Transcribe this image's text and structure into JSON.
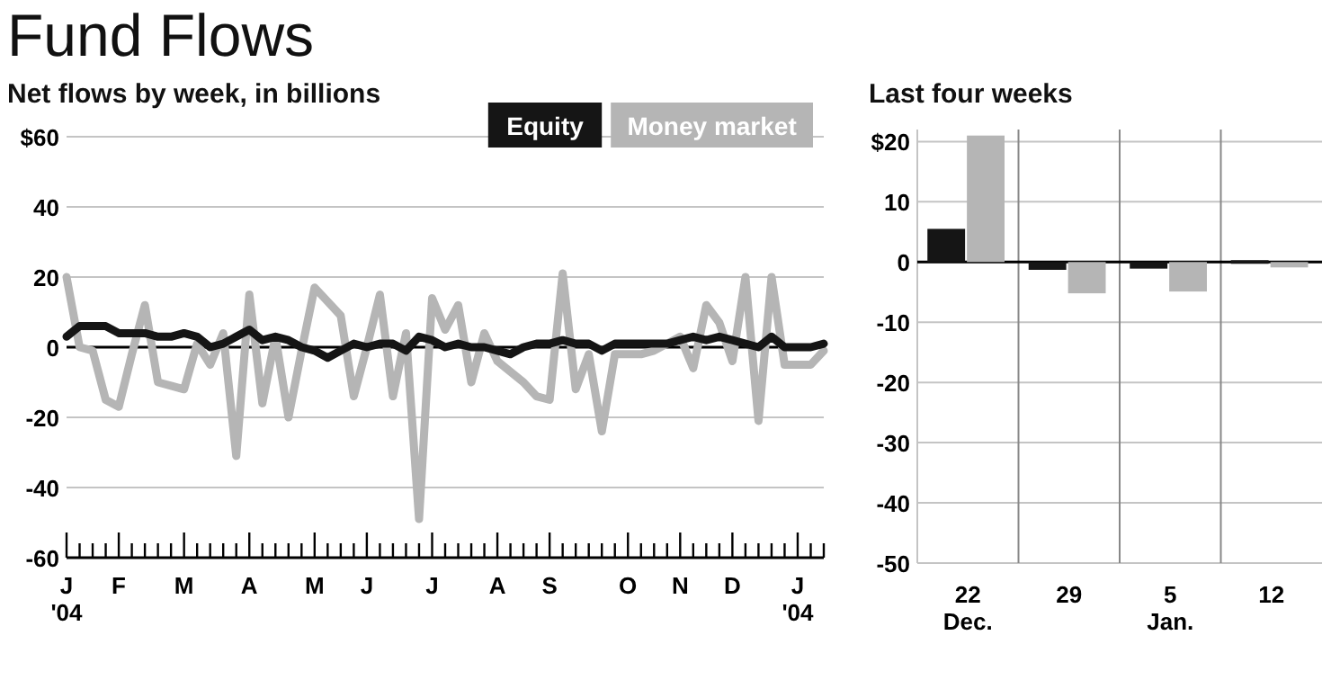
{
  "chart_data": [
    {
      "type": "line",
      "title": "Fund Flows",
      "subtitle": "Net flows by week, in billions",
      "ylim": [
        -60,
        60
      ],
      "yticks": [
        {
          "value": 60,
          "label": "$60"
        },
        40,
        20,
        0,
        -20,
        -40,
        -60
      ],
      "categories": [
        "J\n'04",
        null,
        null,
        null,
        "F",
        null,
        null,
        null,
        null,
        "M",
        null,
        null,
        null,
        null,
        "A",
        null,
        null,
        null,
        null,
        "M",
        null,
        null,
        null,
        "J",
        null,
        null,
        null,
        null,
        "J",
        null,
        null,
        null,
        null,
        "A",
        null,
        null,
        null,
        "S",
        null,
        null,
        null,
        null,
        null,
        "O",
        null,
        null,
        null,
        "N",
        null,
        null,
        null,
        "D",
        null,
        null,
        null,
        null,
        "J\n'04",
        null,
        null
      ],
      "grid": "y",
      "legend": "top right",
      "ref_lines": [
        {
          "axis": "y",
          "value": 0,
          "color": "#000000"
        }
      ],
      "series": [
        {
          "name": "Equity",
          "color": "#151515",
          "values": [
            3,
            6,
            6,
            6,
            4,
            4,
            4,
            3,
            3,
            4,
            3,
            0,
            1,
            3,
            5,
            2,
            3,
            2,
            0,
            -1,
            -3,
            -1,
            1,
            0,
            1,
            1,
            -1,
            3,
            2,
            0,
            1,
            0,
            0,
            -1,
            -2,
            0,
            1,
            1,
            2,
            1,
            1,
            -1,
            1,
            1,
            1,
            1,
            1,
            2,
            3,
            2,
            3,
            2,
            1,
            0,
            3,
            0,
            0,
            0,
            1
          ]
        },
        {
          "name": "Money market",
          "color": "#b5b5b5",
          "values": [
            20,
            0,
            -1,
            -15,
            -17,
            -2,
            12,
            -10,
            -11,
            -12,
            1,
            -5,
            4,
            -31,
            15,
            -16,
            3,
            -20,
            -1,
            17,
            13,
            9,
            -14,
            0,
            15,
            -14,
            4,
            -49,
            14,
            5,
            12,
            -10,
            4,
            -4,
            -7,
            -10,
            -14,
            -15,
            21,
            -12,
            -2,
            -24,
            -2,
            -2,
            -2,
            -1,
            1,
            3,
            -6,
            12,
            7,
            -4,
            20,
            -21,
            20,
            -5,
            -5,
            -5,
            -1
          ]
        }
      ]
    },
    {
      "type": "bar",
      "title": "Last four weeks",
      "categories": [
        "22\nDec.",
        "29",
        "5\nJan.",
        "12"
      ],
      "ylim": [
        -50,
        22
      ],
      "yticks": [
        {
          "value": 20,
          "label": "$20"
        },
        10,
        0,
        -10,
        -20,
        -30,
        -40,
        -50
      ],
      "grid": true,
      "legend": false,
      "ref_lines": [
        {
          "axis": "y",
          "value": 0,
          "color": "#000000"
        }
      ],
      "series": [
        {
          "color": "#151515",
          "values": [
            5.5,
            -1.3,
            -1.1,
            0.3
          ]
        },
        {
          "color": "#b5b5b5",
          "values": [
            21,
            -5.2,
            -4.9,
            -0.9
          ]
        }
      ]
    }
  ]
}
